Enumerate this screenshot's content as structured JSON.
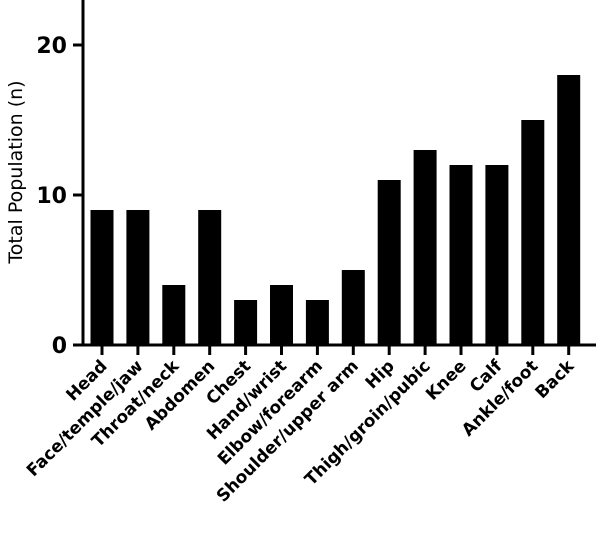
{
  "chart_data": {
    "type": "bar",
    "title": "",
    "xlabel": "",
    "ylabel": "Total Population (n)",
    "categories": [
      "Head",
      "Face/temple/jaw",
      "Throat/neck",
      "Abdomen",
      "Chest",
      "Hand/wrist",
      "Elbow/forearm",
      "Shoulder/upper arm",
      "Hip",
      "Thigh/groin/pubic",
      "Knee",
      "Calf",
      "Ankle/foot",
      "Back"
    ],
    "values": [
      9,
      9,
      4,
      9,
      3,
      4,
      3,
      5,
      11,
      13,
      12,
      12,
      15,
      18
    ],
    "ylim": [
      0,
      23
    ],
    "yticks": [
      0,
      10,
      20
    ],
    "yticks_labels": [
      "0",
      "10",
      "20"
    ],
    "bar_color": "#000000",
    "grid": false,
    "legend": "none"
  }
}
